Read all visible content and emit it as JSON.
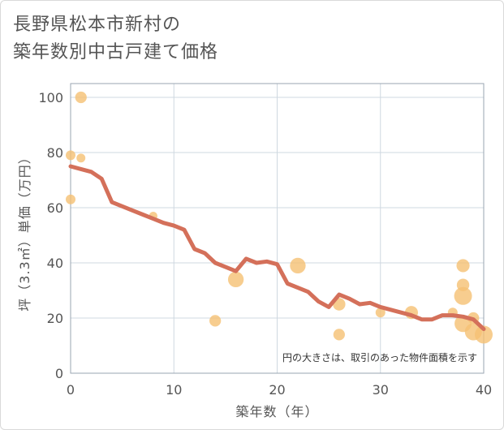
{
  "title": [
    "長野県松本市新村の",
    "築年数別中古戸建て価格"
  ],
  "chart_data": {
    "type": "scatter",
    "xlabel": "築年数（年）",
    "ylabel": "坪（3.3㎡）単価（万円）",
    "xlim": [
      0,
      40
    ],
    "ylim": [
      0,
      105
    ],
    "xticks": [
      0,
      10,
      20,
      30,
      40
    ],
    "yticks": [
      0,
      20,
      40,
      60,
      80,
      100
    ],
    "grid": true,
    "annotation": "円の大きさは、取引のあった物件面積を示す",
    "colors": {
      "bubble": "#f5c073",
      "line": "#d4705a",
      "grid": "#cfd8e0"
    },
    "points": [
      {
        "x": 0,
        "y": 79,
        "size": 1
      },
      {
        "x": 0,
        "y": 63,
        "size": 1
      },
      {
        "x": 1,
        "y": 100,
        "size": 1.5
      },
      {
        "x": 1,
        "y": 78,
        "size": 0.8
      },
      {
        "x": 8,
        "y": 57,
        "size": 0.7
      },
      {
        "x": 14,
        "y": 19,
        "size": 1.5
      },
      {
        "x": 16,
        "y": 34,
        "size": 3
      },
      {
        "x": 22,
        "y": 39,
        "size": 3
      },
      {
        "x": 26,
        "y": 25,
        "size": 1.8
      },
      {
        "x": 26,
        "y": 14,
        "size": 1.5
      },
      {
        "x": 30,
        "y": 22,
        "size": 1
      },
      {
        "x": 33,
        "y": 22,
        "size": 2
      },
      {
        "x": 37,
        "y": 22,
        "size": 1
      },
      {
        "x": 38,
        "y": 39,
        "size": 2
      },
      {
        "x": 38,
        "y": 32,
        "size": 1.8
      },
      {
        "x": 38,
        "y": 28,
        "size": 4
      },
      {
        "x": 38,
        "y": 18,
        "size": 3.6
      },
      {
        "x": 39,
        "y": 15,
        "size": 3.6
      },
      {
        "x": 39,
        "y": 20,
        "size": 1.5
      },
      {
        "x": 40,
        "y": 14,
        "size": 4
      }
    ],
    "trend": {
      "x": [
        0,
        1,
        2,
        3,
        4,
        5,
        6,
        7,
        8,
        9,
        10,
        11,
        12,
        13,
        14,
        15,
        16,
        17,
        18,
        19,
        20,
        21,
        22,
        23,
        24,
        25,
        26,
        27,
        28,
        29,
        30,
        31,
        32,
        33,
        34,
        35,
        36,
        37,
        38,
        39,
        40
      ],
      "y": [
        75,
        74,
        73,
        70.5,
        62,
        60.5,
        59,
        57.5,
        56,
        54.5,
        53.5,
        52,
        45,
        43.5,
        40,
        38.5,
        37,
        41.5,
        40,
        40.5,
        39.5,
        32.5,
        31,
        29.5,
        26,
        24,
        28.5,
        27,
        25,
        25.5,
        24,
        23,
        22,
        21,
        19.5,
        19.5,
        21,
        21,
        20.5,
        19.5,
        16
      ]
    }
  }
}
